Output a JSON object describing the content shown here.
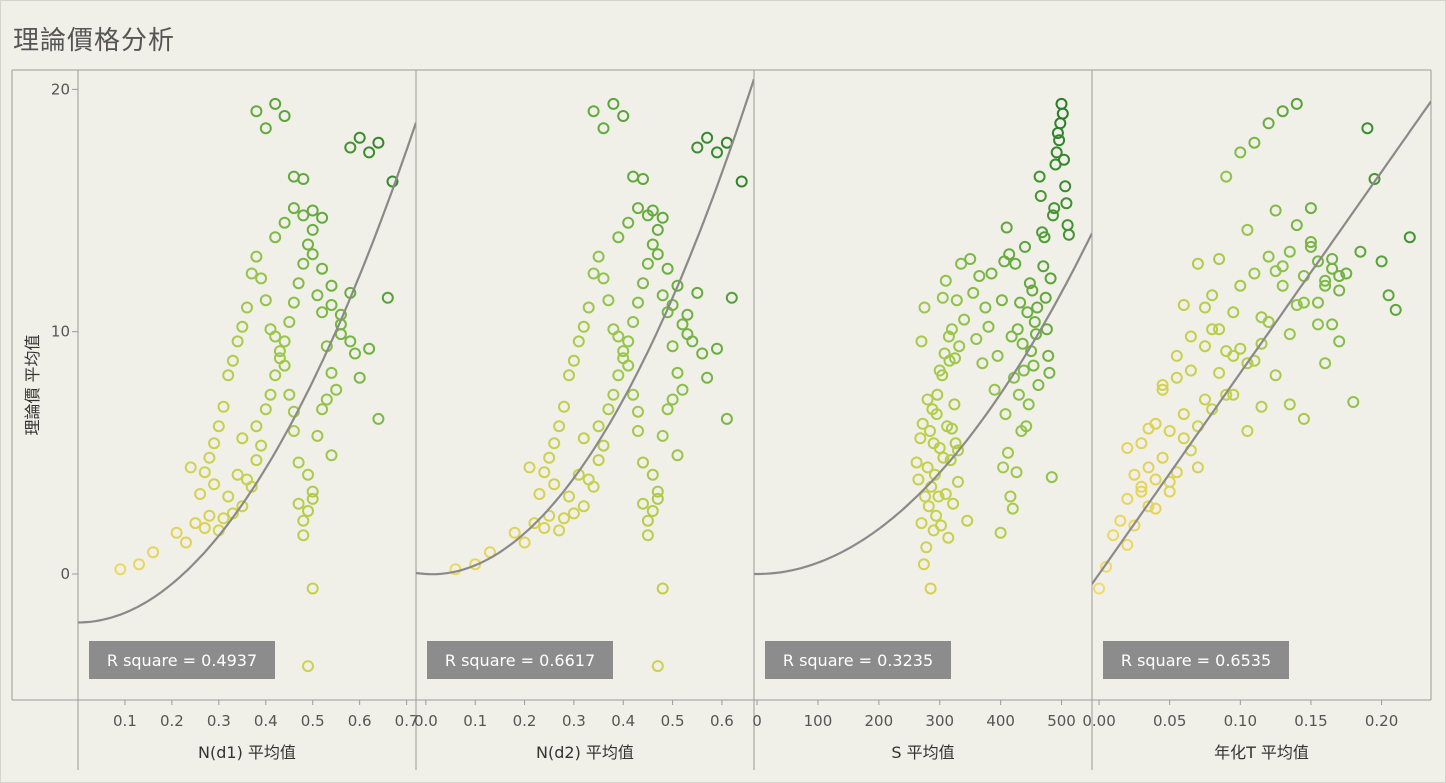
{
  "title": "理論價格分析",
  "y_axis_title": "理論價 平均值",
  "colors": {
    "gradient": [
      "#f2dc6e",
      "#e4d25a",
      "#c2d04a",
      "#8ec24a",
      "#4c9c36",
      "#1a6e22"
    ],
    "trend": "#8a8a8a",
    "annotation_bg": "#8c8c8c"
  },
  "chart_data": [
    {
      "type": "scatter",
      "xlabel": "N(d1) 平均值",
      "ylabel": "理論價 平均值",
      "xlim": [
        0.0,
        0.72
      ],
      "ylim": [
        -5.2,
        20.8
      ],
      "xticks": [
        0.1,
        0.2,
        0.3,
        0.4,
        0.5,
        0.6,
        0.7
      ],
      "xtick_labels": [
        "0.1",
        "0.2",
        "0.3",
        "0.4",
        "0.5",
        "0.6",
        "0.7"
      ],
      "yticks": [
        0,
        10,
        20
      ],
      "ytick_labels": [
        "0",
        "10",
        "20"
      ],
      "trend": "polynomial",
      "trend_coeffs": [
        -2.0,
        0.0,
        39.8
      ],
      "annotation": "R square = 0.4937",
      "x": [
        0.09,
        0.13,
        0.16,
        0.21,
        0.23,
        0.24,
        0.27,
        0.28,
        0.29,
        0.3,
        0.31,
        0.32,
        0.33,
        0.34,
        0.35,
        0.35,
        0.36,
        0.37,
        0.38,
        0.38,
        0.39,
        0.4,
        0.41,
        0.42,
        0.43,
        0.44,
        0.45,
        0.46,
        0.47,
        0.48,
        0.49,
        0.5,
        0.51,
        0.52,
        0.53,
        0.54,
        0.55,
        0.56,
        0.58,
        0.59,
        0.6,
        0.62,
        0.64,
        0.66,
        0.67,
        0.46,
        0.47,
        0.48,
        0.49,
        0.5,
        0.51,
        0.52,
        0.53,
        0.54,
        0.5,
        0.49,
        0.48,
        0.47,
        0.46,
        0.45,
        0.44,
        0.43,
        0.42,
        0.41,
        0.4,
        0.39,
        0.38,
        0.37,
        0.36,
        0.35,
        0.34,
        0.33,
        0.32,
        0.31,
        0.3,
        0.29,
        0.28,
        0.27,
        0.26,
        0.25,
        0.42,
        0.44,
        0.46,
        0.48,
        0.5,
        0.52,
        0.54,
        0.56,
        0.58,
        0.6,
        0.62,
        0.64,
        0.38,
        0.4,
        0.42,
        0.44,
        0.46,
        0.48,
        0.5,
        0.52,
        0.54,
        0.56,
        0.58,
        0.5,
        0.49
      ],
      "y": [
        0.2,
        0.4,
        0.9,
        1.7,
        1.3,
        4.4,
        1.9,
        2.4,
        3.7,
        1.8,
        2.3,
        3.2,
        2.5,
        4.1,
        2.8,
        5.6,
        3.9,
        3.6,
        4.7,
        6.1,
        5.3,
        6.8,
        7.4,
        8.2,
        8.9,
        9.6,
        10.4,
        11.2,
        12.0,
        12.8,
        13.6,
        14.2,
        11.5,
        10.8,
        9.4,
        8.3,
        7.6,
        9.9,
        11.6,
        9.1,
        8.1,
        9.3,
        6.4,
        11.4,
        16.2,
        6.7,
        2.9,
        2.2,
        4.1,
        3.4,
        5.7,
        6.8,
        7.2,
        4.9,
        3.1,
        2.6,
        1.6,
        4.6,
        5.9,
        7.4,
        8.6,
        9.2,
        9.8,
        10.1,
        11.3,
        12.2,
        13.1,
        12.4,
        11.0,
        10.2,
        9.6,
        8.8,
        8.2,
        6.9,
        6.1,
        5.4,
        4.8,
        4.2,
        3.3,
        2.1,
        13.9,
        14.5,
        15.1,
        14.8,
        13.2,
        12.6,
        11.9,
        10.7,
        17.6,
        18.0,
        17.4,
        17.8,
        19.1,
        18.4,
        19.4,
        18.9,
        16.4,
        16.3,
        15.0,
        14.7,
        11.1,
        10.3,
        9.6,
        -0.6,
        -3.8
      ]
    },
    {
      "type": "scatter",
      "xlabel": "N(d2) 平均值",
      "ylabel": "理論價 平均值",
      "xlim": [
        -0.02,
        0.665
      ],
      "ylim": [
        -5.2,
        20.8
      ],
      "xticks": [
        0.0,
        0.1,
        0.2,
        0.3,
        0.4,
        0.5,
        0.6
      ],
      "xtick_labels": [
        "0.0",
        "0.1",
        "0.2",
        "0.3",
        "0.4",
        "0.5",
        "0.6"
      ],
      "yticks": [
        0,
        10,
        20
      ],
      "ytick_labels": [
        "0",
        "10",
        "20"
      ],
      "trend": "polynomial",
      "trend_coeffs": [
        0.0,
        -1.2,
        48.0
      ],
      "annotation": "R square = 0.6617",
      "x": [
        0.06,
        0.1,
        0.13,
        0.18,
        0.2,
        0.21,
        0.24,
        0.25,
        0.26,
        0.27,
        0.28,
        0.29,
        0.3,
        0.31,
        0.32,
        0.32,
        0.33,
        0.34,
        0.35,
        0.35,
        0.36,
        0.37,
        0.38,
        0.39,
        0.4,
        0.41,
        0.42,
        0.43,
        0.44,
        0.45,
        0.46,
        0.47,
        0.48,
        0.49,
        0.5,
        0.51,
        0.52,
        0.53,
        0.55,
        0.56,
        0.57,
        0.59,
        0.61,
        0.62,
        0.64,
        0.43,
        0.44,
        0.45,
        0.46,
        0.47,
        0.48,
        0.49,
        0.5,
        0.51,
        0.47,
        0.46,
        0.45,
        0.44,
        0.43,
        0.42,
        0.41,
        0.4,
        0.39,
        0.38,
        0.37,
        0.36,
        0.35,
        0.34,
        0.33,
        0.32,
        0.31,
        0.3,
        0.29,
        0.28,
        0.27,
        0.26,
        0.25,
        0.24,
        0.23,
        0.22,
        0.39,
        0.41,
        0.43,
        0.45,
        0.47,
        0.49,
        0.51,
        0.53,
        0.55,
        0.57,
        0.59,
        0.61,
        0.34,
        0.36,
        0.38,
        0.4,
        0.42,
        0.44,
        0.46,
        0.48,
        0.5,
        0.52,
        0.54,
        0.48,
        0.47
      ],
      "y": [
        0.2,
        0.4,
        0.9,
        1.7,
        1.3,
        4.4,
        1.9,
        2.4,
        3.7,
        1.8,
        2.3,
        3.2,
        2.5,
        4.1,
        2.8,
        5.6,
        3.9,
        3.6,
        4.7,
        6.1,
        5.3,
        6.8,
        7.4,
        8.2,
        8.9,
        9.6,
        10.4,
        11.2,
        12.0,
        12.8,
        13.6,
        14.2,
        11.5,
        10.8,
        9.4,
        8.3,
        7.6,
        9.9,
        11.6,
        9.1,
        8.1,
        9.3,
        6.4,
        11.4,
        16.2,
        6.7,
        2.9,
        2.2,
        4.1,
        3.4,
        5.7,
        6.8,
        7.2,
        4.9,
        3.1,
        2.6,
        1.6,
        4.6,
        5.9,
        7.4,
        8.6,
        9.2,
        9.8,
        10.1,
        11.3,
        12.2,
        13.1,
        12.4,
        11.0,
        10.2,
        9.6,
        8.8,
        8.2,
        6.9,
        6.1,
        5.4,
        4.8,
        4.2,
        3.3,
        2.1,
        13.9,
        14.5,
        15.1,
        14.8,
        13.2,
        12.6,
        11.9,
        10.7,
        17.6,
        18.0,
        17.4,
        17.8,
        19.1,
        18.4,
        19.4,
        18.9,
        16.4,
        16.3,
        15.0,
        14.7,
        11.1,
        10.3,
        9.6,
        -0.6,
        -3.8
      ]
    },
    {
      "type": "scatter",
      "xlabel": "S 平均值",
      "ylabel": "理論價 平均值",
      "xlim": [
        -5,
        550
      ],
      "ylim": [
        -5.2,
        20.8
      ],
      "xticks": [
        0,
        100,
        200,
        300,
        400,
        500
      ],
      "xtick_labels": [
        "0",
        "100",
        "200",
        "300",
        "400",
        "500"
      ],
      "yticks": [
        0,
        10,
        20
      ],
      "ytick_labels": [
        "0",
        "10",
        "20"
      ],
      "trend": "polynomial",
      "trend_coeffs": [
        0.0,
        0.0,
        4.65e-05
      ],
      "annotation": "R square = 0.3235",
      "x": [
        262,
        265,
        268,
        270,
        272,
        274,
        276,
        278,
        280,
        282,
        284,
        286,
        288,
        290,
        292,
        294,
        296,
        298,
        300,
        302,
        304,
        306,
        308,
        310,
        312,
        314,
        316,
        318,
        320,
        322,
        324,
        326,
        328,
        330,
        332,
        270,
        275,
        280,
        285,
        290,
        295,
        300,
        305,
        310,
        315,
        320,
        325,
        330,
        335,
        340,
        345,
        350,
        355,
        360,
        365,
        370,
        375,
        380,
        385,
        390,
        395,
        400,
        402,
        404,
        406,
        408,
        410,
        412,
        414,
        416,
        418,
        420,
        422,
        424,
        426,
        428,
        430,
        432,
        434,
        436,
        438,
        440,
        442,
        444,
        446,
        448,
        450,
        452,
        454,
        456,
        458,
        460,
        462,
        464,
        466,
        468,
        470,
        472,
        474,
        476,
        478,
        480,
        482,
        484,
        486,
        488,
        490,
        492,
        494,
        496,
        498,
        500,
        502,
        504,
        506,
        508,
        510,
        512
      ],
      "y": [
        4.6,
        3.9,
        5.6,
        2.1,
        6.2,
        0.4,
        3.2,
        1.1,
        4.4,
        2.8,
        5.9,
        3.6,
        6.8,
        1.8,
        4.1,
        2.4,
        7.4,
        3.2,
        5.2,
        2.0,
        8.2,
        4.8,
        9.1,
        3.3,
        6.1,
        1.5,
        8.8,
        4.7,
        10.1,
        2.9,
        7.0,
        5.4,
        11.3,
        3.8,
        9.4,
        9.6,
        11.0,
        7.2,
        -0.6,
        5.4,
        6.6,
        8.4,
        11.4,
        12.1,
        9.8,
        6.0,
        8.9,
        5.1,
        12.8,
        10.5,
        2.2,
        13.0,
        11.6,
        9.7,
        12.3,
        8.7,
        11.0,
        10.2,
        12.4,
        7.6,
        9.0,
        1.7,
        11.3,
        4.4,
        12.9,
        6.6,
        14.3,
        5.0,
        13.2,
        3.2,
        9.8,
        2.7,
        8.1,
        12.8,
        4.2,
        10.1,
        7.4,
        11.2,
        5.9,
        9.5,
        8.4,
        13.5,
        6.1,
        10.8,
        7.0,
        12.0,
        9.2,
        11.7,
        8.6,
        10.4,
        9.9,
        11.0,
        7.8,
        16.4,
        15.6,
        14.1,
        12.7,
        13.9,
        11.4,
        10.1,
        9.0,
        8.3,
        12.2,
        4.0,
        14.8,
        15.1,
        16.9,
        17.4,
        18.2,
        17.9,
        18.6,
        19.4,
        19.0,
        17.1,
        16.0,
        15.3,
        14.4,
        14.0
      ]
    },
    {
      "type": "scatter",
      "xlabel": "年化T 平均值",
      "ylabel": "理論價 平均值",
      "xlim": [
        -0.005,
        0.235
      ],
      "ylim": [
        -5.2,
        20.8
      ],
      "xticks": [
        0.0,
        0.05,
        0.1,
        0.15,
        0.2
      ],
      "xtick_labels": [
        "0.00",
        "0.05",
        "0.10",
        "0.15",
        "0.20"
      ],
      "yticks": [
        0,
        10,
        20
      ],
      "ytick_labels": [
        "0",
        "10",
        "20"
      ],
      "trend": "polynomial",
      "trend_coeffs": [
        0.0,
        83.0,
        0.0
      ],
      "annotation": "R square = 0.6535",
      "x": [
        0.0,
        0.005,
        0.01,
        0.015,
        0.02,
        0.02,
        0.025,
        0.025,
        0.03,
        0.03,
        0.035,
        0.035,
        0.04,
        0.04,
        0.045,
        0.045,
        0.05,
        0.05,
        0.055,
        0.055,
        0.06,
        0.06,
        0.065,
        0.065,
        0.07,
        0.07,
        0.075,
        0.075,
        0.08,
        0.08,
        0.085,
        0.085,
        0.09,
        0.09,
        0.095,
        0.095,
        0.1,
        0.1,
        0.105,
        0.105,
        0.11,
        0.11,
        0.115,
        0.115,
        0.12,
        0.12,
        0.125,
        0.125,
        0.13,
        0.13,
        0.135,
        0.135,
        0.14,
        0.14,
        0.145,
        0.145,
        0.15,
        0.15,
        0.155,
        0.155,
        0.16,
        0.16,
        0.165,
        0.165,
        0.17,
        0.17,
        0.175,
        0.18,
        0.185,
        0.19,
        0.195,
        0.2,
        0.205,
        0.21,
        0.22,
        0.03,
        0.04,
        0.05,
        0.06,
        0.07,
        0.08,
        0.09,
        0.1,
        0.11,
        0.12,
        0.13,
        0.14,
        0.15,
        0.16,
        0.17,
        0.02,
        0.035,
        0.045,
        0.055,
        0.065,
        0.075,
        0.085,
        0.095,
        0.105,
        0.115,
        0.125,
        0.135,
        0.145,
        0.155,
        0.165
      ],
      "y": [
        -0.6,
        0.3,
        1.6,
        2.2,
        1.2,
        3.1,
        2.0,
        4.1,
        3.6,
        5.4,
        2.8,
        4.4,
        3.9,
        6.2,
        4.8,
        7.6,
        3.4,
        5.9,
        9.0,
        4.2,
        6.6,
        11.1,
        5.1,
        8.4,
        12.8,
        6.1,
        9.4,
        7.2,
        10.1,
        11.5,
        8.3,
        13.0,
        9.2,
        16.4,
        7.4,
        10.8,
        17.4,
        11.9,
        8.7,
        14.2,
        12.4,
        17.8,
        9.5,
        10.6,
        13.1,
        18.6,
        12.5,
        15.0,
        11.9,
        19.1,
        9.9,
        13.3,
        14.4,
        19.4,
        11.2,
        12.3,
        13.5,
        15.1,
        12.9,
        11.2,
        12.1,
        8.7,
        13.0,
        10.3,
        11.7,
        9.6,
        12.4,
        7.1,
        13.3,
        18.4,
        16.3,
        12.9,
        11.5,
        10.9,
        13.9,
        3.4,
        2.7,
        3.8,
        5.6,
        4.4,
        6.8,
        7.4,
        9.3,
        8.8,
        10.4,
        12.7,
        11.1,
        13.7,
        11.9,
        12.3,
        5.2,
        6.0,
        7.8,
        8.1,
        9.8,
        11.0,
        10.1,
        9.0,
        5.9,
        6.9,
        8.2,
        7.0,
        6.4,
        10.3,
        12.6
      ]
    }
  ]
}
